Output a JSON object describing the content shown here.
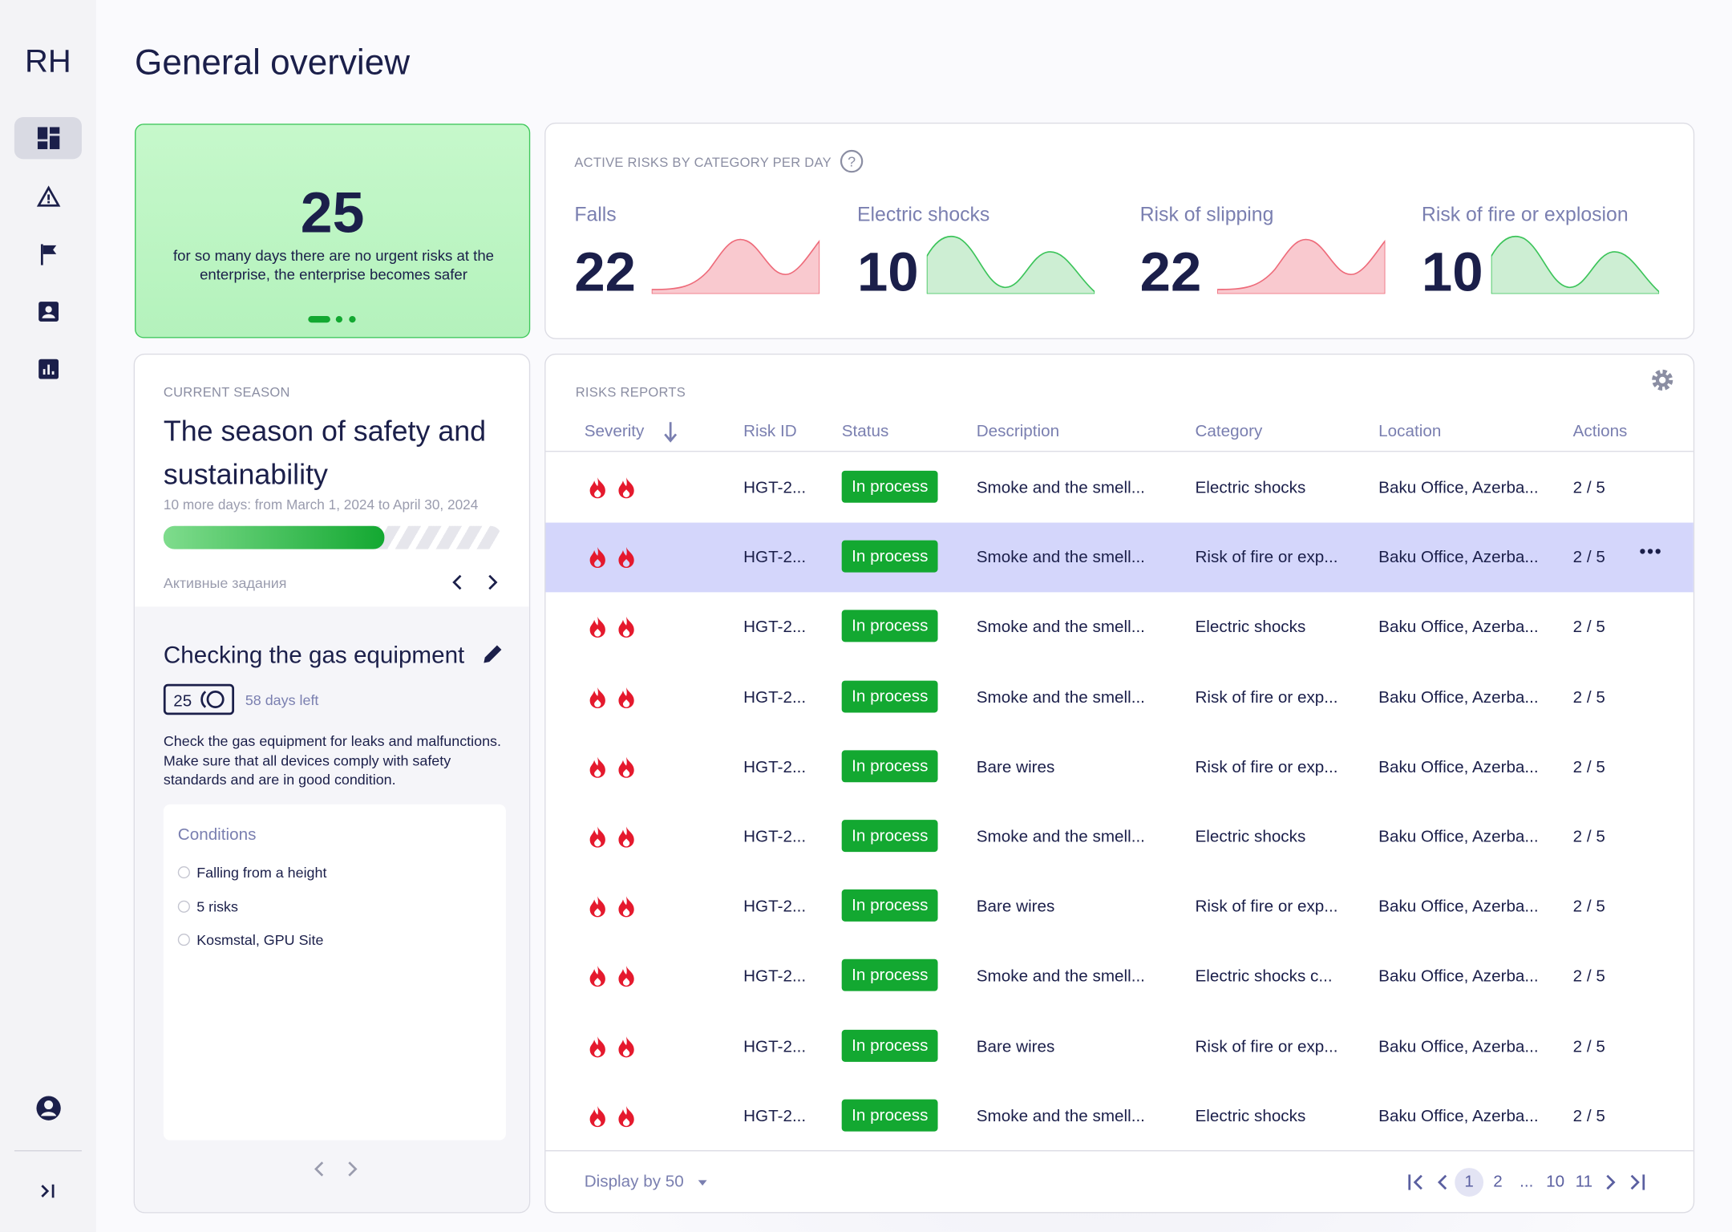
{
  "brand": "RH",
  "header": {
    "title": "General overview"
  },
  "streak": {
    "value": "25",
    "text": "for so many days there are no urgent risks at the enterprise, the enterprise becomes safer"
  },
  "risks_by_category": {
    "title": "ACTIVE RISKS BY CATEGORY PER DAY",
    "items": [
      {
        "name": "Falls",
        "value": 22
      },
      {
        "name": "Electric shocks",
        "value": 10
      },
      {
        "name": "Risk of slipping",
        "value": 22
      },
      {
        "name": "Risk of fire or explosion",
        "value": 10
      }
    ]
  },
  "season": {
    "label": "CURRENT SEASON",
    "title": "The season of safety and sustainability",
    "dates": "10 more days: from March 1, 2024 to April 30, 2024",
    "tasks_label": "Активные задания"
  },
  "task": {
    "title": "Checking the gas equipment",
    "counter": "25",
    "days_left": "58 days left",
    "description": "Check the gas equipment for leaks and malfunctions. Make sure that all devices comply with safety standards and are in good condition.",
    "conditions_title": "Conditions",
    "conditions": [
      "Falling from a height",
      "5 risks",
      "Kosmstal, GPU Site"
    ]
  },
  "reports": {
    "title": "RISKS REPORTS",
    "columns": [
      "Severity",
      "Risk ID",
      "Status",
      "Description",
      "Category",
      "Location",
      "Actions"
    ],
    "rows": [
      [
        "HGT-2...",
        "In process",
        "Smoke and the smell...",
        "Electric shocks",
        "Baku Office, Azerba...",
        "2 / 5"
      ],
      [
        "HGT-2...",
        "In process",
        "Smoke and the smell...",
        "Risk of fire or exp...",
        "Baku Office, Azerba...",
        "2 / 5"
      ],
      [
        "HGT-2...",
        "In process",
        "Smoke and the smell...",
        "Electric shocks",
        "Baku Office, Azerba...",
        "2 / 5"
      ],
      [
        "HGT-2...",
        "In process",
        "Smoke and the smell...",
        "Risk of fire or exp...",
        "Baku Office, Azerba...",
        "2 / 5"
      ],
      [
        "HGT-2...",
        "In process",
        "Bare wires",
        "Risk of fire or exp...",
        "Baku Office, Azerba...",
        "2 / 5"
      ],
      [
        "HGT-2...",
        "In process",
        "Smoke and the smell...",
        "Electric shocks",
        "Baku Office, Azerba...",
        "2 / 5"
      ],
      [
        "HGT-2...",
        "In process",
        "Bare wires",
        "Risk of fire or exp...",
        "Baku Office, Azerba...",
        "2 / 5"
      ],
      [
        "HGT-2...",
        "In process",
        "Smoke and the smell...",
        "Electric shocks c...",
        "Baku Office, Azerba...",
        "2 / 5"
      ],
      [
        "HGT-2...",
        "In process",
        "Bare wires",
        "Risk of fire or exp...",
        "Baku Office, Azerba...",
        "2 / 5"
      ],
      [
        "HGT-2...",
        "In process",
        "Smoke and the smell...",
        "Electric shocks",
        "Baku Office, Azerba...",
        "2 / 5"
      ]
    ],
    "display": "Display by 50",
    "pages": [
      "1",
      "2",
      "...",
      "10",
      "11"
    ]
  }
}
